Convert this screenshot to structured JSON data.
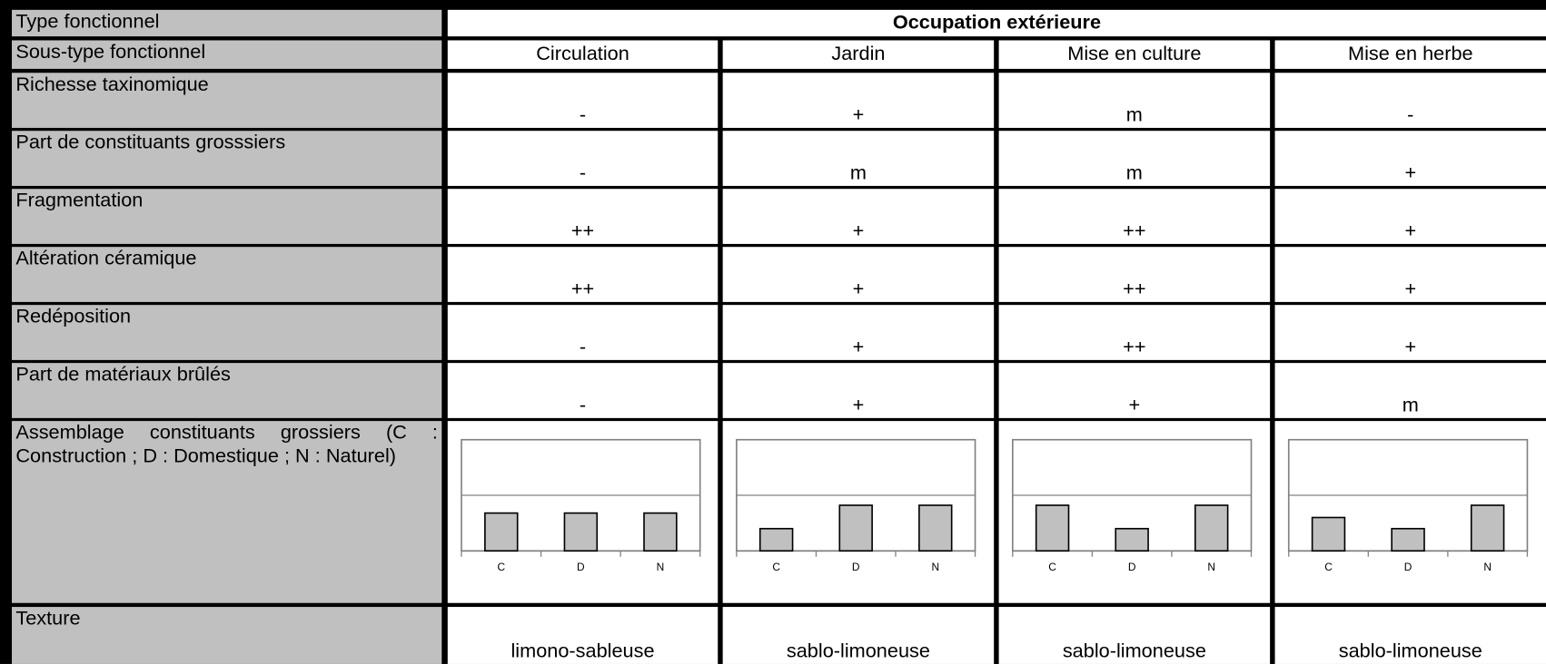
{
  "table": {
    "header": {
      "label": "Type fonctionnel",
      "title": "Occupation extérieure"
    },
    "subheader": {
      "label": "Sous-type fonctionnel",
      "columns": [
        "Circulation",
        "Jardin",
        "Mise en culture",
        "Mise en herbe"
      ]
    },
    "rows": [
      {
        "label": "Richesse taxinomique",
        "cells": [
          "-",
          "+",
          "m",
          "-"
        ]
      },
      {
        "label": "Part de constituants grosssiers",
        "cells": [
          "-",
          "m",
          "m",
          "+"
        ]
      },
      {
        "label": "Fragmentation",
        "cells": [
          "++",
          "+",
          "++",
          "+"
        ]
      },
      {
        "label": "Altération céramique",
        "cells": [
          "++",
          "+",
          "++",
          "+"
        ]
      },
      {
        "label": "Redéposition",
        "cells": [
          "-",
          "+",
          "++",
          "+"
        ]
      },
      {
        "label": "Part de matériaux brûlés",
        "cells": [
          "-",
          "+",
          "+",
          "m"
        ]
      }
    ],
    "chart_row": {
      "label": "Assemblage constituants grossiers (C : Construction ; D : Domestique ; N : Naturel)",
      "charts": [
        {
          "type": "bar",
          "categories": [
            "C",
            "D",
            "N"
          ],
          "values": [
            34,
            34,
            34
          ],
          "color": "#c0c0c0",
          "ylim": [
            0,
            100
          ],
          "yticks": [
            0,
            50,
            100
          ],
          "grid": true
        },
        {
          "type": "bar",
          "categories": [
            "C",
            "D",
            "N"
          ],
          "values": [
            20,
            41,
            41
          ],
          "color": "#c0c0c0",
          "ylim": [
            0,
            100
          ],
          "yticks": [
            0,
            50,
            100
          ],
          "grid": true
        },
        {
          "type": "bar",
          "categories": [
            "C",
            "D",
            "N"
          ],
          "values": [
            41,
            20,
            41
          ],
          "color": "#c0c0c0",
          "ylim": [
            0,
            100
          ],
          "yticks": [
            0,
            50,
            100
          ],
          "grid": true
        },
        {
          "type": "bar",
          "categories": [
            "C",
            "D",
            "N"
          ],
          "values": [
            30,
            20,
            41
          ],
          "color": "#c0c0c0",
          "ylim": [
            0,
            100
          ],
          "yticks": [
            0,
            50,
            100
          ],
          "grid": true
        }
      ]
    },
    "texture": {
      "label": "Texture",
      "cells": [
        "limono-sableuse",
        "sablo-limoneuse",
        "sablo-limoneuse",
        "sablo-limoneuse"
      ]
    }
  }
}
